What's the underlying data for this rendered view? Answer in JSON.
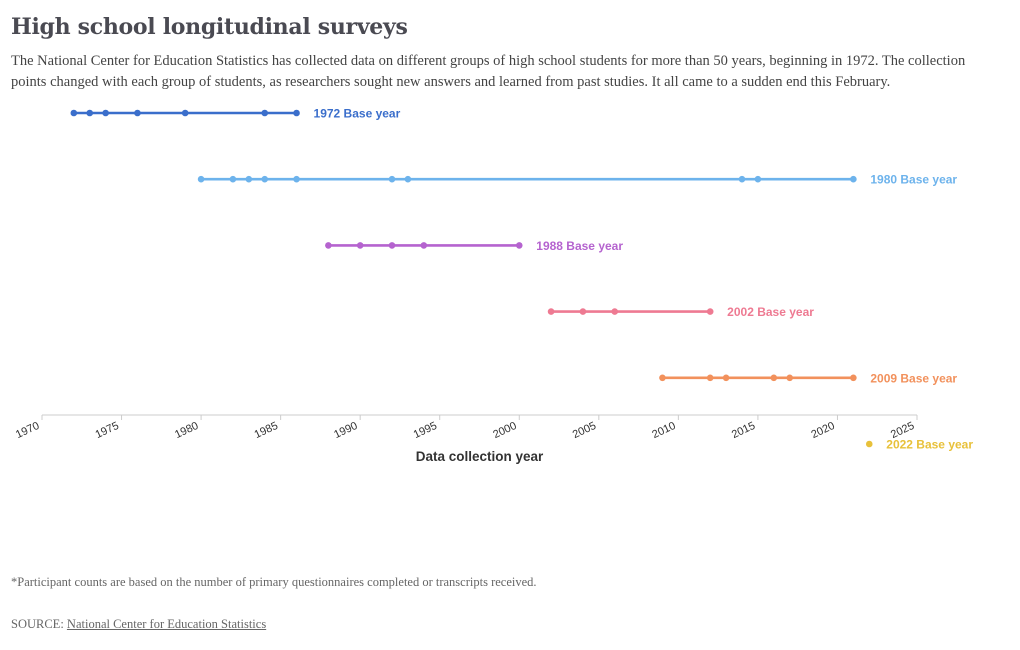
{
  "title": "High school longitudinal surveys",
  "subtitle": "The National Center for Education Statistics has collected data on different groups of high school students for more than 50 years, beginning in 1972. The collection points changed with each group of students, as researchers sought new answers and learned from past studies. It all came to a sudden end this February.",
  "footnote": "*Participant counts are based on the number of primary questionnaires completed or transcripts received.",
  "source": {
    "prefix": "SOURCE: ",
    "link_text": "National Center for Education Statistics"
  },
  "chart_data": {
    "type": "line",
    "xlabel": "Data collection year",
    "ylabel": "",
    "xlim": [
      1970,
      2025
    ],
    "x_ticks": [
      1970,
      1975,
      1980,
      1985,
      1990,
      1995,
      2000,
      2005,
      2010,
      2015,
      2020,
      2025
    ],
    "grid": false,
    "series": [
      {
        "name": "1972 Base year",
        "color": "#3a6ecb",
        "x": [
          1972,
          1973,
          1974,
          1976,
          1979,
          1984,
          1986
        ]
      },
      {
        "name": "1980 Base year",
        "color": "#6db3ec",
        "x": [
          1980,
          1982,
          1983,
          1984,
          1986,
          1992,
          1993,
          2014,
          2015,
          2021
        ]
      },
      {
        "name": "1988 Base year",
        "color": "#b563cf",
        "x": [
          1988,
          1990,
          1992,
          1994,
          2000
        ]
      },
      {
        "name": "2002 Base year",
        "color": "#ee7a92",
        "x": [
          2002,
          2004,
          2006,
          2012
        ]
      },
      {
        "name": "2009 Base year",
        "color": "#f2915c",
        "x": [
          2009,
          2012,
          2013,
          2016,
          2017,
          2021
        ]
      },
      {
        "name": "2022 Base year",
        "color": "#e8c13a",
        "x": [
          2022
        ]
      }
    ]
  }
}
